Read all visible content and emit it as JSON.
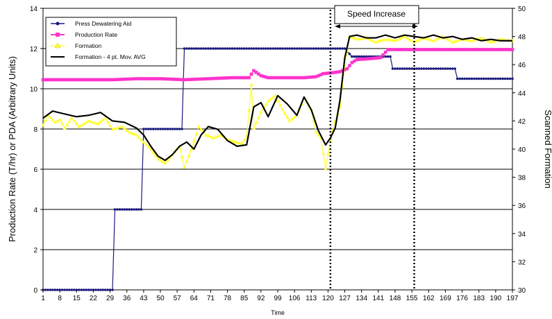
{
  "chart_data": {
    "type": "line",
    "xlabel": "Time",
    "ylabel": "Production Rate (T/hr) or PDA (Arbitrary Units)",
    "y2label": "Scanned Formation",
    "xlim": [
      1,
      197
    ],
    "ylim": [
      0,
      14
    ],
    "y2lim": [
      30,
      50
    ],
    "x_tick_labels": [
      "1",
      "8",
      "15",
      "22",
      "29",
      "36",
      "43",
      "50",
      "57",
      "64",
      "71",
      "78",
      "85",
      "92",
      "99",
      "106",
      "113",
      "120",
      "127",
      "134",
      "141",
      "148",
      "155",
      "162",
      "169",
      "176",
      "183",
      "190",
      "197"
    ],
    "y_ticks": [
      0,
      2,
      4,
      6,
      8,
      10,
      12,
      14
    ],
    "y2_ticks": [
      30,
      32,
      34,
      36,
      38,
      40,
      42,
      44,
      46,
      48,
      50
    ],
    "grid": "horizontal",
    "legend_position": "top-left",
    "colors": {
      "pda": "#1a1a7e",
      "production": "#ff33cc",
      "formation": "#ffff33",
      "formation_avg": "#000000"
    },
    "series": [
      {
        "name": "Press Dewatering Aid",
        "axis": "left",
        "points": [
          [
            1,
            0
          ],
          [
            30,
            0
          ],
          [
            31,
            4
          ],
          [
            42,
            4
          ],
          [
            43,
            8
          ],
          [
            59,
            8
          ],
          [
            60,
            12
          ],
          [
            121,
            12
          ],
          [
            124,
            12
          ],
          [
            127,
            12
          ],
          [
            130,
            11.6
          ],
          [
            146,
            11.6
          ],
          [
            147,
            11
          ],
          [
            173,
            11
          ],
          [
            174,
            10.5
          ],
          [
            197,
            10.5
          ]
        ]
      },
      {
        "name": "Production Rate",
        "axis": "left",
        "points": [
          [
            1,
            10.45
          ],
          [
            10,
            10.45
          ],
          [
            20,
            10.45
          ],
          [
            30,
            10.45
          ],
          [
            40,
            10.5
          ],
          [
            50,
            10.5
          ],
          [
            60,
            10.45
          ],
          [
            70,
            10.5
          ],
          [
            80,
            10.55
          ],
          [
            87,
            10.55
          ],
          [
            89,
            10.9
          ],
          [
            92,
            10.65
          ],
          [
            95,
            10.55
          ],
          [
            100,
            10.55
          ],
          [
            110,
            10.55
          ],
          [
            115,
            10.6
          ],
          [
            118,
            10.75
          ],
          [
            122,
            10.8
          ],
          [
            125,
            10.85
          ],
          [
            128,
            11.0
          ],
          [
            130,
            11.3
          ],
          [
            132,
            11.45
          ],
          [
            138,
            11.5
          ],
          [
            142,
            11.55
          ],
          [
            145,
            11.95
          ],
          [
            197,
            11.95
          ]
        ]
      },
      {
        "name": "Formation",
        "axis": "right",
        "points": [
          [
            1,
            41.7
          ],
          [
            3,
            42.4
          ],
          [
            6,
            41.9
          ],
          [
            8,
            42.1
          ],
          [
            10,
            41.5
          ],
          [
            13,
            42.2
          ],
          [
            16,
            41.6
          ],
          [
            20,
            42.0
          ],
          [
            24,
            41.8
          ],
          [
            27,
            42.2
          ],
          [
            30,
            41.4
          ],
          [
            34,
            41.6
          ],
          [
            37,
            41.2
          ],
          [
            40,
            41.0
          ],
          [
            43,
            40.5
          ],
          [
            46,
            40.0
          ],
          [
            49,
            39.3
          ],
          [
            52,
            39.0
          ],
          [
            55,
            39.6
          ],
          [
            58,
            40.2
          ],
          [
            60,
            38.7
          ],
          [
            63,
            40.0
          ],
          [
            66,
            41.6
          ],
          [
            69,
            41.0
          ],
          [
            72,
            40.8
          ],
          [
            75,
            41.0
          ],
          [
            78,
            40.7
          ],
          [
            81,
            40.5
          ],
          [
            84,
            40.4
          ],
          [
            86,
            40.9
          ],
          [
            88,
            44.6
          ],
          [
            89,
            41.5
          ],
          [
            92,
            42.6
          ],
          [
            95,
            43.4
          ],
          [
            98,
            43.8
          ],
          [
            101,
            42.8
          ],
          [
            104,
            42.0
          ],
          [
            107,
            42.4
          ],
          [
            110,
            43.6
          ],
          [
            113,
            42.8
          ],
          [
            115,
            41.2
          ],
          [
            117,
            40.8
          ],
          [
            119,
            38.6
          ],
          [
            121,
            40.7
          ],
          [
            123,
            42.0
          ],
          [
            125,
            43.0
          ],
          [
            127,
            46.0
          ],
          [
            129,
            48.0
          ],
          [
            132,
            47.8
          ],
          [
            136,
            47.9
          ],
          [
            140,
            47.6
          ],
          [
            144,
            47.8
          ],
          [
            148,
            47.7
          ],
          [
            152,
            48.0
          ],
          [
            156,
            47.6
          ],
          [
            160,
            47.9
          ],
          [
            164,
            47.7
          ],
          [
            168,
            48.0
          ],
          [
            172,
            47.6
          ],
          [
            176,
            47.8
          ],
          [
            180,
            47.7
          ],
          [
            184,
            47.9
          ],
          [
            188,
            47.6
          ],
          [
            192,
            47.8
          ],
          [
            197,
            47.7
          ]
        ]
      },
      {
        "name": "Formation - 4 pt. Mov. AVG",
        "axis": "right",
        "points": [
          [
            1,
            42.2
          ],
          [
            5,
            42.7
          ],
          [
            10,
            42.5
          ],
          [
            15,
            42.3
          ],
          [
            20,
            42.4
          ],
          [
            25,
            42.6
          ],
          [
            30,
            42.0
          ],
          [
            35,
            41.9
          ],
          [
            40,
            41.5
          ],
          [
            43,
            41.0
          ],
          [
            46,
            40.2
          ],
          [
            49,
            39.5
          ],
          [
            52,
            39.2
          ],
          [
            55,
            39.6
          ],
          [
            58,
            40.2
          ],
          [
            61,
            40.5
          ],
          [
            64,
            40.0
          ],
          [
            67,
            41.0
          ],
          [
            70,
            41.6
          ],
          [
            74,
            41.4
          ],
          [
            78,
            40.6
          ],
          [
            82,
            40.2
          ],
          [
            86,
            40.3
          ],
          [
            89,
            43.0
          ],
          [
            92,
            43.3
          ],
          [
            95,
            42.3
          ],
          [
            99,
            43.8
          ],
          [
            103,
            43.2
          ],
          [
            107,
            42.4
          ],
          [
            110,
            43.7
          ],
          [
            113,
            42.8
          ],
          [
            116,
            41.3
          ],
          [
            119,
            40.3
          ],
          [
            121,
            40.8
          ],
          [
            123,
            41.5
          ],
          [
            125,
            43.5
          ],
          [
            127,
            46.5
          ],
          [
            129,
            48.0
          ],
          [
            132,
            48.1
          ],
          [
            136,
            47.9
          ],
          [
            140,
            47.9
          ],
          [
            144,
            48.1
          ],
          [
            148,
            47.9
          ],
          [
            152,
            48.1
          ],
          [
            156,
            48.0
          ],
          [
            160,
            47.9
          ],
          [
            164,
            48.1
          ],
          [
            168,
            47.9
          ],
          [
            172,
            48.0
          ],
          [
            176,
            47.8
          ],
          [
            180,
            47.9
          ],
          [
            184,
            47.7
          ],
          [
            188,
            47.8
          ],
          [
            192,
            47.7
          ],
          [
            197,
            47.7
          ]
        ]
      }
    ],
    "annotations": [
      {
        "type": "vline",
        "x": 121
      },
      {
        "type": "vline",
        "x": 156
      },
      {
        "type": "span_label",
        "text": "Speed Increase",
        "x_start": 121,
        "x_end": 156
      }
    ]
  }
}
